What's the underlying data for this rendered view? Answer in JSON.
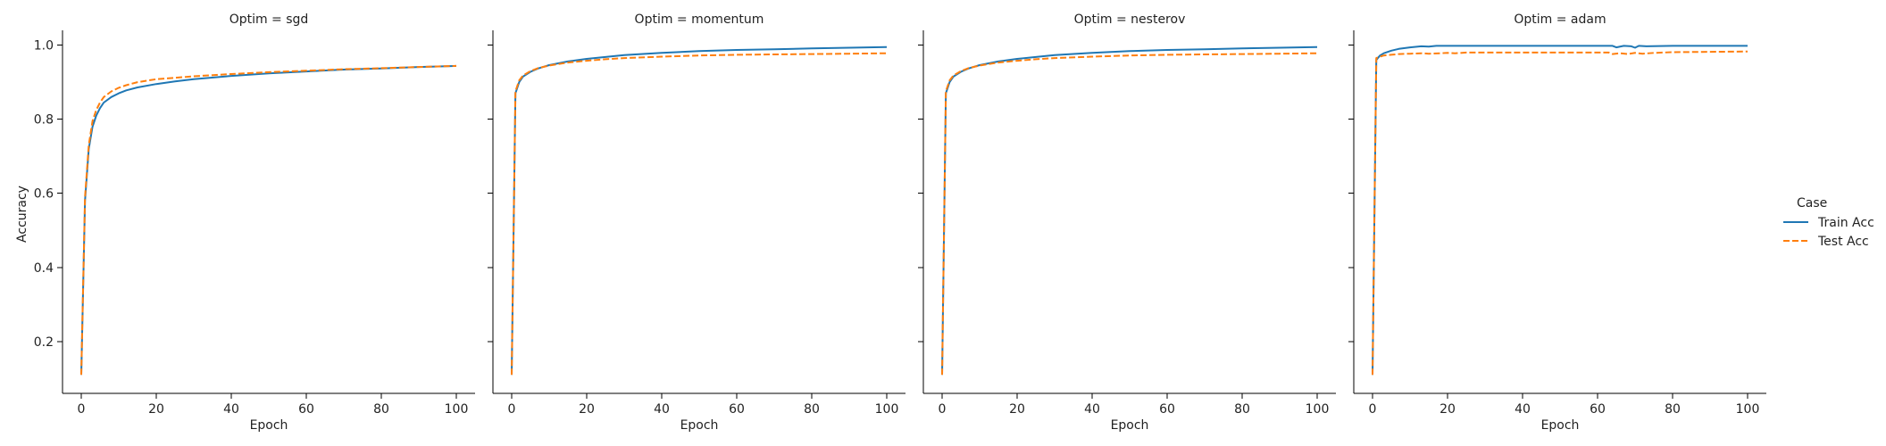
{
  "chart_data": {
    "type": "line",
    "facet_label": "Optim",
    "xlabel": "Epoch",
    "ylabel": "Accuracy",
    "xlim": [
      -5,
      105
    ],
    "ylim": [
      0.06,
      1.04
    ],
    "xticks": [
      0,
      20,
      40,
      60,
      80,
      100
    ],
    "yticks": [
      0.2,
      0.4,
      0.6,
      0.8,
      1.0
    ],
    "legend": {
      "title": "Case",
      "position": "right",
      "entries": [
        {
          "name": "Train Acc",
          "color": "#1f77b4",
          "style": "solid"
        },
        {
          "name": "Test Acc",
          "color": "#ff7f0e",
          "style": "dashed"
        }
      ]
    },
    "panels": [
      {
        "title": "Optim = sgd",
        "series": [
          {
            "name": "Train Acc",
            "x": [
              0,
              1,
              2,
              3,
              4,
              5,
              6,
              8,
              10,
              12,
              15,
              20,
              25,
              30,
              40,
              50,
              60,
              70,
              80,
              90,
              100
            ],
            "y": [
              0.11,
              0.58,
              0.72,
              0.78,
              0.81,
              0.83,
              0.845,
              0.86,
              0.87,
              0.878,
              0.886,
              0.895,
              0.902,
              0.908,
              0.917,
              0.924,
              0.929,
              0.934,
              0.937,
              0.941,
              0.944
            ]
          },
          {
            "name": "Test Acc",
            "x": [
              0,
              1,
              2,
              3,
              4,
              5,
              6,
              8,
              10,
              12,
              15,
              20,
              25,
              30,
              40,
              50,
              60,
              70,
              80,
              90,
              100
            ],
            "y": [
              0.11,
              0.59,
              0.73,
              0.795,
              0.825,
              0.845,
              0.86,
              0.875,
              0.885,
              0.892,
              0.9,
              0.908,
              0.912,
              0.916,
              0.922,
              0.927,
              0.931,
              0.935,
              0.938,
              0.941,
              0.944
            ]
          }
        ]
      },
      {
        "title": "Optim = momentum",
        "series": [
          {
            "name": "Train Acc",
            "x": [
              0,
              1,
              2,
              3,
              5,
              7,
              10,
              15,
              20,
              25,
              30,
              40,
              50,
              60,
              70,
              80,
              90,
              100
            ],
            "y": [
              0.11,
              0.87,
              0.9,
              0.915,
              0.928,
              0.937,
              0.946,
              0.956,
              0.963,
              0.968,
              0.973,
              0.979,
              0.984,
              0.987,
              0.989,
              0.991,
              0.993,
              0.995
            ]
          },
          {
            "name": "Test Acc",
            "x": [
              0,
              1,
              2,
              3,
              5,
              7,
              10,
              15,
              20,
              25,
              30,
              40,
              50,
              60,
              70,
              80,
              90,
              100
            ],
            "y": [
              0.11,
              0.875,
              0.905,
              0.918,
              0.93,
              0.938,
              0.945,
              0.953,
              0.958,
              0.962,
              0.965,
              0.969,
              0.972,
              0.974,
              0.975,
              0.976,
              0.977,
              0.978
            ]
          }
        ]
      },
      {
        "title": "Optim = nesterov",
        "series": [
          {
            "name": "Train Acc",
            "x": [
              0,
              1,
              2,
              3,
              5,
              7,
              10,
              15,
              20,
              25,
              30,
              40,
              50,
              60,
              70,
              80,
              90,
              100
            ],
            "y": [
              0.11,
              0.87,
              0.9,
              0.915,
              0.928,
              0.937,
              0.946,
              0.956,
              0.963,
              0.968,
              0.973,
              0.979,
              0.984,
              0.987,
              0.989,
              0.991,
              0.993,
              0.995
            ]
          },
          {
            "name": "Test Acc",
            "x": [
              0,
              1,
              2,
              3,
              5,
              7,
              10,
              15,
              20,
              25,
              30,
              40,
              50,
              60,
              70,
              80,
              90,
              100
            ],
            "y": [
              0.11,
              0.875,
              0.905,
              0.918,
              0.93,
              0.938,
              0.945,
              0.953,
              0.958,
              0.962,
              0.965,
              0.969,
              0.972,
              0.974,
              0.975,
              0.976,
              0.977,
              0.978
            ]
          }
        ]
      },
      {
        "title": "Optim = adam",
        "series": [
          {
            "name": "Train Acc",
            "x": [
              0,
              1,
              2,
              3,
              5,
              7,
              10,
              13,
              15,
              17,
              20,
              25,
              30,
              40,
              50,
              60,
              64,
              65,
              67,
              69,
              70,
              71,
              73,
              80,
              90,
              100
            ],
            "y": [
              0.11,
              0.96,
              0.972,
              0.978,
              0.985,
              0.99,
              0.994,
              0.997,
              0.996,
              0.998,
              0.998,
              0.998,
              0.998,
              0.998,
              0.998,
              0.998,
              0.998,
              0.994,
              0.998,
              0.997,
              0.993,
              0.998,
              0.997,
              0.998,
              0.998,
              0.998
            ]
          },
          {
            "name": "Test Acc",
            "x": [
              0,
              1,
              2,
              3,
              5,
              7,
              10,
              13,
              15,
              18,
              20,
              22,
              25,
              30,
              40,
              50,
              60,
              63,
              64,
              66,
              68,
              70,
              72,
              75,
              80,
              90,
              100
            ],
            "y": [
              0.11,
              0.965,
              0.969,
              0.972,
              0.974,
              0.976,
              0.977,
              0.978,
              0.977,
              0.978,
              0.979,
              0.978,
              0.98,
              0.98,
              0.98,
              0.98,
              0.98,
              0.98,
              0.976,
              0.978,
              0.976,
              0.979,
              0.977,
              0.979,
              0.981,
              0.982,
              0.983
            ]
          }
        ]
      }
    ]
  }
}
